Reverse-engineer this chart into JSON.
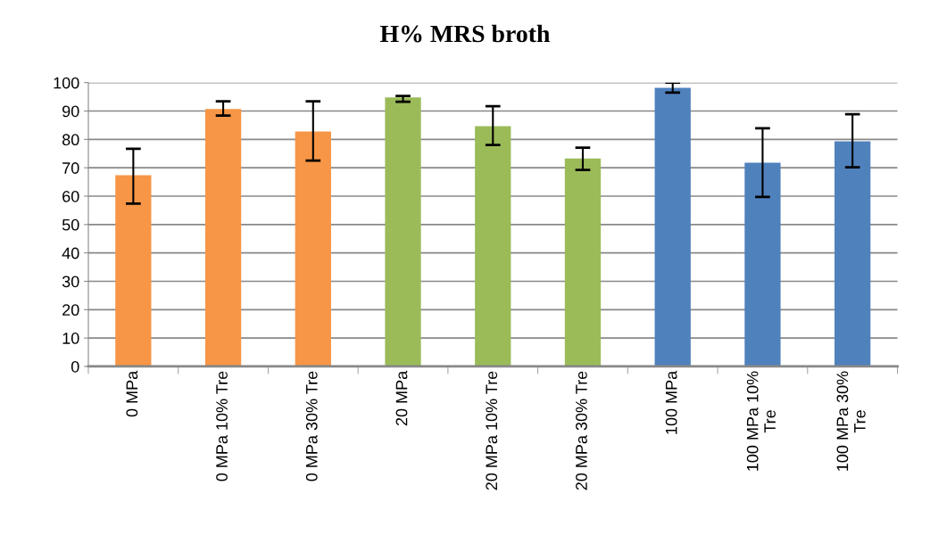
{
  "chart_data": {
    "type": "bar",
    "title": "H% MRS broth",
    "categories": [
      "0 MPa",
      "0 MPa 10% Tre",
      "0 MPa 30% Tre",
      "20 MPa",
      "20 MPa 10% Tre",
      "20 MPa 30% Tre",
      "100 MPa",
      "100 MPa 10%\nTre",
      "100 MPa 30%\nTre"
    ],
    "values": [
      67.4,
      90.7,
      82.8,
      94.8,
      84.7,
      73.3,
      98.2,
      71.8,
      79.3
    ],
    "errors": [
      [
        57.4,
        76.7
      ],
      [
        88.4,
        93.4
      ],
      [
        72.5,
        93.4
      ],
      [
        93.3,
        95.3
      ],
      [
        78.0,
        91.7
      ],
      [
        69.2,
        77.1
      ],
      [
        96.5,
        100
      ],
      [
        59.7,
        83.9
      ],
      [
        70.2,
        88.9
      ]
    ],
    "colors": [
      "#f79646",
      "#f79646",
      "#f79646",
      "#9bbb59",
      "#9bbb59",
      "#9bbb59",
      "#4f81bd",
      "#4f81bd",
      "#4f81bd"
    ],
    "ylim": [
      0,
      100
    ],
    "yticks": [
      0,
      10,
      20,
      30,
      40,
      50,
      60,
      70,
      80,
      90,
      100
    ],
    "grid": "y",
    "legend": false
  }
}
